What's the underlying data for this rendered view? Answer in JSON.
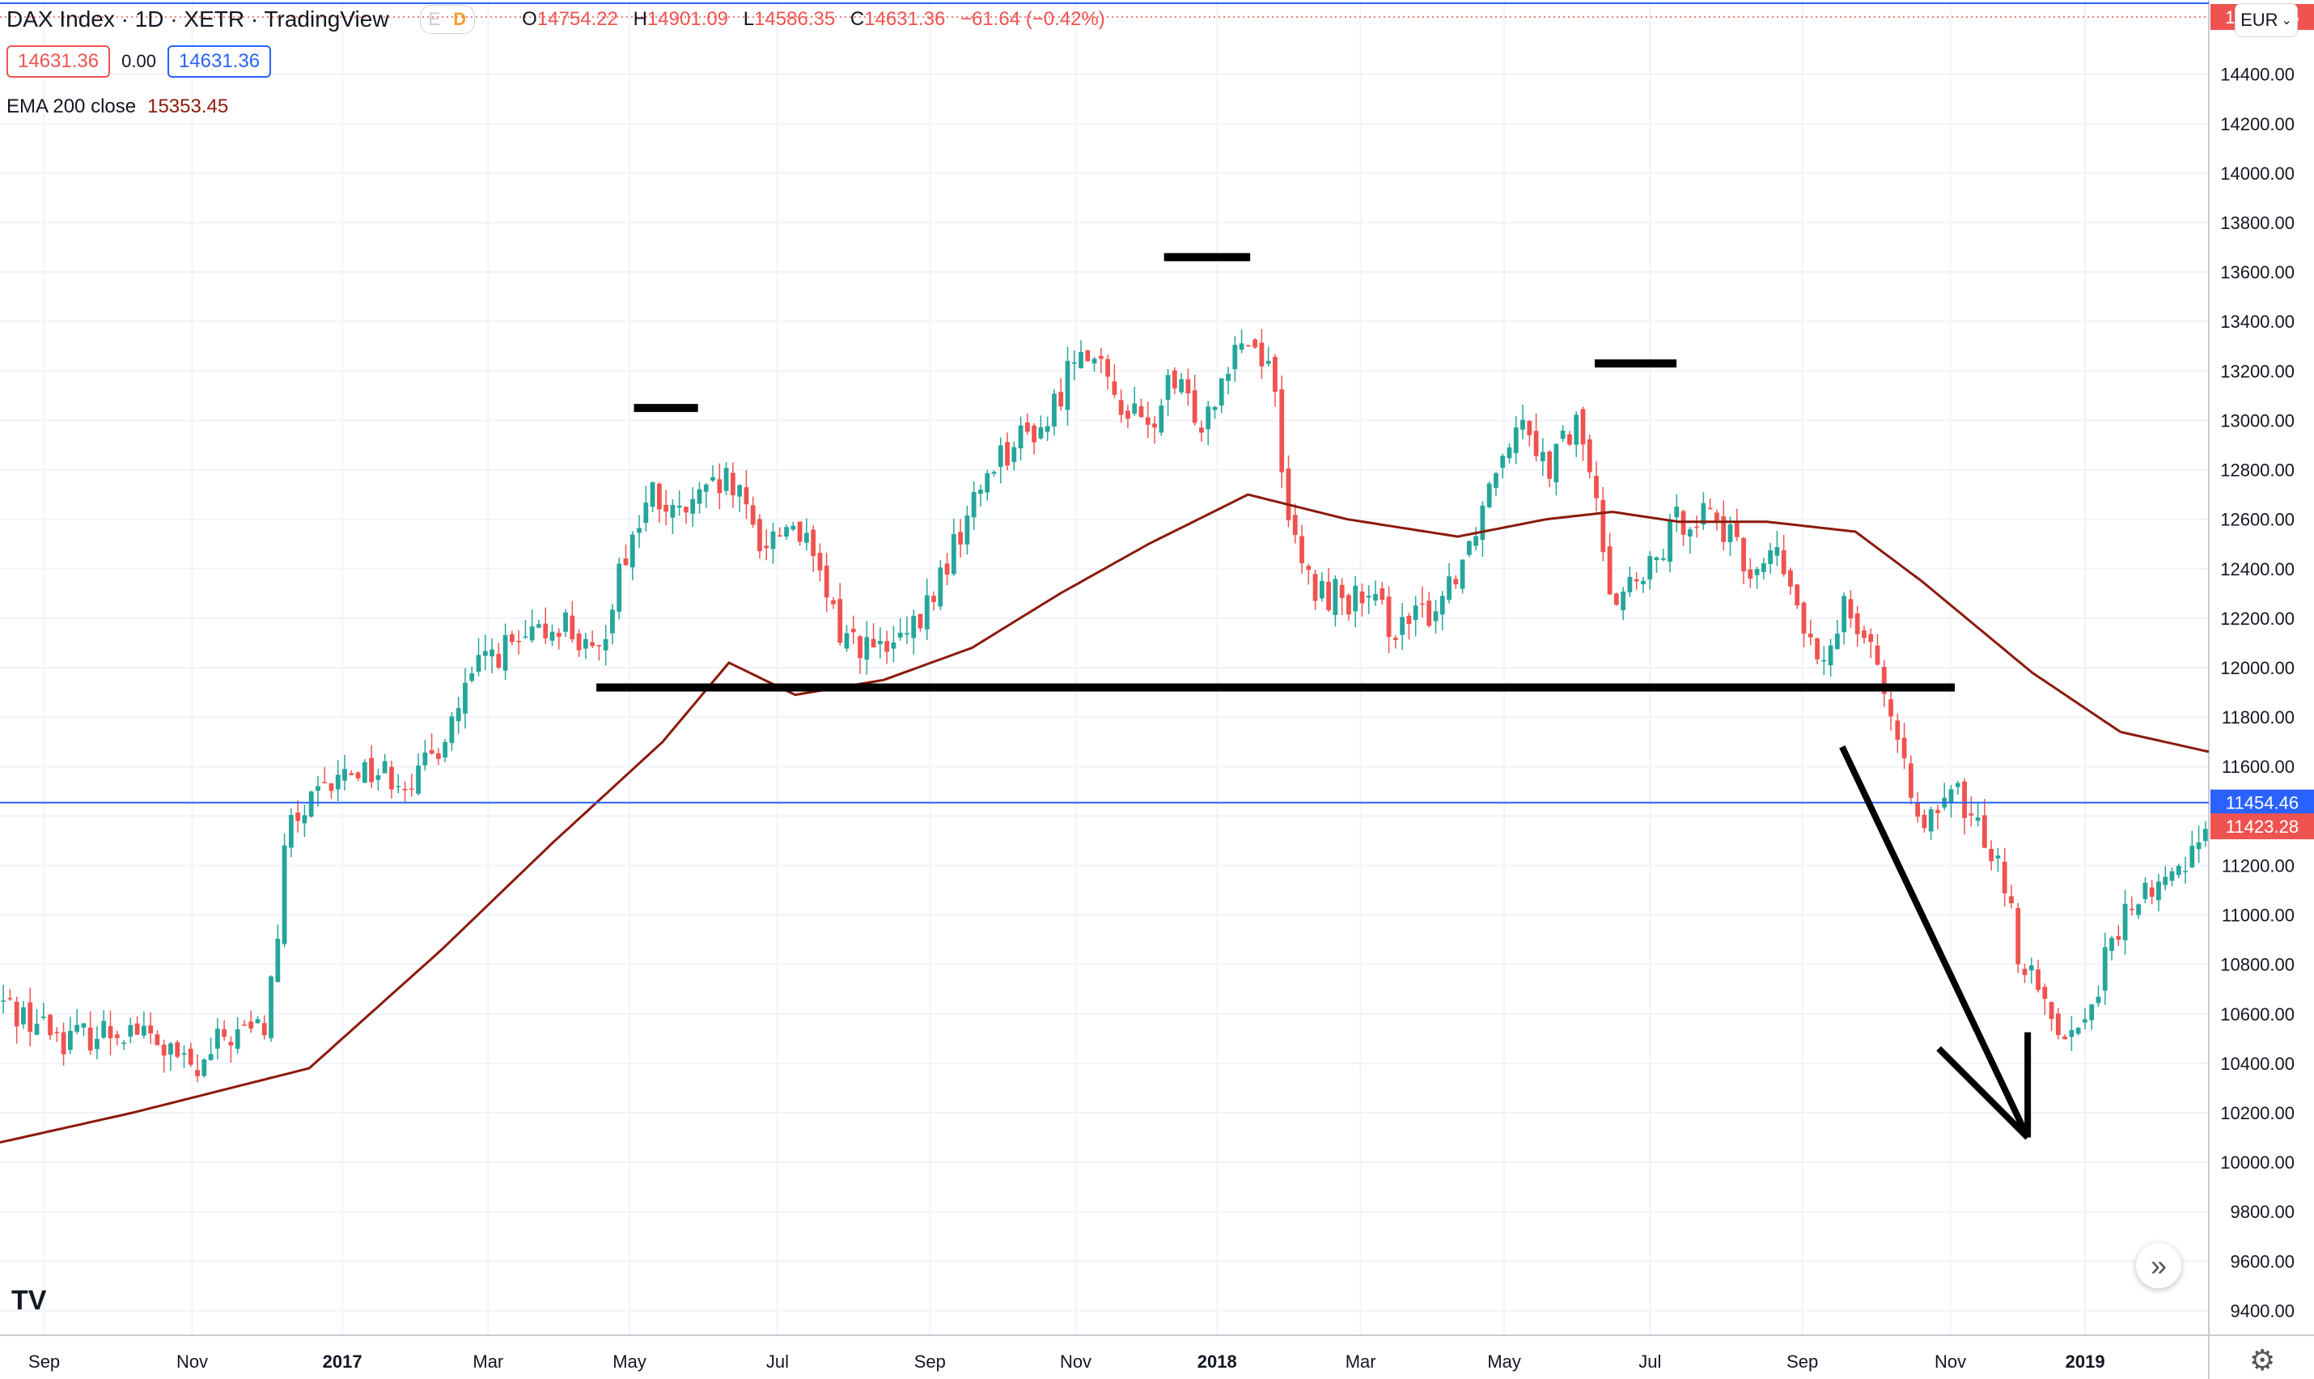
{
  "header": {
    "symbol": "DAX Index · 1D · XETR · TradingView",
    "flag_e": "E",
    "flag_d": "D",
    "ohlc": [
      {
        "k": "O",
        "v": "14754.22"
      },
      {
        "k": "H",
        "v": "14901.09"
      },
      {
        "k": "L",
        "v": "14586.35"
      },
      {
        "k": "C",
        "v": "14631.36"
      }
    ],
    "change": "−61.64 (−0.42%)",
    "bid": "14631.36",
    "spread": "0.00",
    "ask": "14631.36",
    "indicator_label": "EMA 200 close",
    "indicator_value": "15353.45",
    "currency": "EUR",
    "currency_icon": "chevron-down-icon",
    "nav_icon": "double-chevron-right-icon",
    "logo": "TV",
    "settings_icon": "gear-icon"
  },
  "colors": {
    "up": "#26a69a",
    "down": "#ef5350",
    "ema": "#8b1a0b",
    "accent": "#2962ff",
    "drawing": "#000000"
  },
  "chart_data": {
    "type": "candlestick",
    "title": "DAX Index · 1D · XETR",
    "ylim": [
      9300,
      14700
    ],
    "y_ticks": [
      "9400.00",
      "9600.00",
      "9800.00",
      "10000.00",
      "10200.00",
      "10400.00",
      "10600.00",
      "10800.00",
      "11000.00",
      "11200.00",
      "11400.00",
      "11600.00",
      "11800.00",
      "12000.00",
      "12200.00",
      "12400.00",
      "12600.00",
      "12800.00",
      "13000.00",
      "13200.00",
      "13400.00",
      "13600.00",
      "13800.00",
      "14000.00",
      "14200.00",
      "14400.00"
    ],
    "x_ticks": [
      {
        "label": "Sep",
        "t": 0.02,
        "bold": false
      },
      {
        "label": "Nov",
        "t": 0.087,
        "bold": false
      },
      {
        "label": "2017",
        "t": 0.155,
        "bold": true
      },
      {
        "label": "Mar",
        "t": 0.221,
        "bold": false
      },
      {
        "label": "May",
        "t": 0.285,
        "bold": false
      },
      {
        "label": "Jul",
        "t": 0.352,
        "bold": false
      },
      {
        "label": "Sep",
        "t": 0.421,
        "bold": false
      },
      {
        "label": "Nov",
        "t": 0.487,
        "bold": false
      },
      {
        "label": "2018",
        "t": 0.551,
        "bold": true
      },
      {
        "label": "Mar",
        "t": 0.616,
        "bold": false
      },
      {
        "label": "May",
        "t": 0.681,
        "bold": false
      },
      {
        "label": "Jul",
        "t": 0.747,
        "bold": false
      },
      {
        "label": "Sep",
        "t": 0.816,
        "bold": false
      },
      {
        "label": "Nov",
        "t": 0.883,
        "bold": false
      },
      {
        "label": "2019",
        "t": 0.944,
        "bold": true
      }
    ],
    "price_anchors": [
      [
        0.0,
        10650
      ],
      [
        0.03,
        10500
      ],
      [
        0.06,
        10550
      ],
      [
        0.09,
        10350
      ],
      [
        0.1,
        10500
      ],
      [
        0.12,
        10550
      ],
      [
        0.125,
        10850
      ],
      [
        0.13,
        11350
      ],
      [
        0.16,
        11600
      ],
      [
        0.19,
        11550
      ],
      [
        0.22,
        12050
      ],
      [
        0.24,
        12100
      ],
      [
        0.255,
        12200
      ],
      [
        0.27,
        12000
      ],
      [
        0.28,
        12400
      ],
      [
        0.295,
        12700
      ],
      [
        0.305,
        12600
      ],
      [
        0.33,
        12750
      ],
      [
        0.345,
        12500
      ],
      [
        0.36,
        12600
      ],
      [
        0.38,
        12150
      ],
      [
        0.4,
        12050
      ],
      [
        0.415,
        12150
      ],
      [
        0.43,
        12450
      ],
      [
        0.45,
        12850
      ],
      [
        0.475,
        13000
      ],
      [
        0.49,
        13350
      ],
      [
        0.5,
        13150
      ],
      [
        0.52,
        12950
      ],
      [
        0.53,
        13150
      ],
      [
        0.545,
        13000
      ],
      [
        0.56,
        13350
      ],
      [
        0.575,
        13250
      ],
      [
        0.585,
        12500
      ],
      [
        0.595,
        12300
      ],
      [
        0.605,
        12300
      ],
      [
        0.62,
        12250
      ],
      [
        0.635,
        12150
      ],
      [
        0.65,
        12250
      ],
      [
        0.665,
        12500
      ],
      [
        0.68,
        12900
      ],
      [
        0.69,
        13050
      ],
      [
        0.7,
        12800
      ],
      [
        0.715,
        13000
      ],
      [
        0.73,
        12300
      ],
      [
        0.745,
        12350
      ],
      [
        0.76,
        12600
      ],
      [
        0.775,
        12650
      ],
      [
        0.79,
        12400
      ],
      [
        0.805,
        12450
      ],
      [
        0.825,
        11950
      ],
      [
        0.835,
        12300
      ],
      [
        0.85,
        12050
      ],
      [
        0.86,
        11600
      ],
      [
        0.875,
        11350
      ],
      [
        0.885,
        11500
      ],
      [
        0.895,
        11350
      ],
      [
        0.905,
        11250
      ],
      [
        0.915,
        10800
      ],
      [
        0.925,
        10650
      ],
      [
        0.94,
        10500
      ],
      [
        0.955,
        10850
      ],
      [
        0.965,
        11050
      ],
      [
        0.985,
        11150
      ],
      [
        1.0,
        11420
      ]
    ],
    "ema_anchors": [
      [
        0.0,
        10080
      ],
      [
        0.06,
        10200
      ],
      [
        0.1,
        10290
      ],
      [
        0.14,
        10380
      ],
      [
        0.2,
        10860
      ],
      [
        0.25,
        11290
      ],
      [
        0.3,
        11700
      ],
      [
        0.33,
        12020
      ],
      [
        0.36,
        11890
      ],
      [
        0.4,
        11950
      ],
      [
        0.44,
        12080
      ],
      [
        0.48,
        12300
      ],
      [
        0.52,
        12500
      ],
      [
        0.565,
        12700
      ],
      [
        0.61,
        12600
      ],
      [
        0.66,
        12530
      ],
      [
        0.7,
        12600
      ],
      [
        0.73,
        12630
      ],
      [
        0.76,
        12590
      ],
      [
        0.8,
        12590
      ],
      [
        0.84,
        12550
      ],
      [
        0.87,
        12350
      ],
      [
        0.92,
        11980
      ],
      [
        0.96,
        11740
      ],
      [
        1.0,
        11660
      ]
    ],
    "ema_last": 11660,
    "candle_count": 330,
    "seed": 42,
    "last_price_label": "11423.28",
    "last_price_value": 11423.28,
    "blue_line_label": "11454.46",
    "blue_line_value": 11454.46,
    "top_price_label": "14631.36",
    "top_price_value": 14631.36,
    "annotations": {
      "support_line": {
        "t1": 0.27,
        "t2": 0.885,
        "price": 11920
      },
      "peak_marks": [
        {
          "t1": 0.287,
          "t2": 0.316,
          "price": 13050
        },
        {
          "t1": 0.527,
          "t2": 0.566,
          "price": 13660
        },
        {
          "t1": 0.722,
          "t2": 0.759,
          "price": 13230
        }
      ],
      "arrow": {
        "t1": 0.834,
        "p1": 11680,
        "t2": 0.918,
        "p2": 10100
      }
    }
  }
}
